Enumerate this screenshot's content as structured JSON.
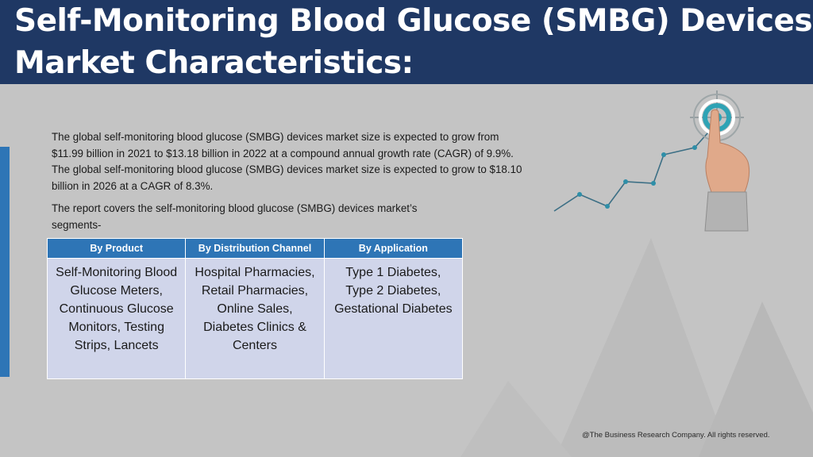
{
  "title_line1": "Self-Monitoring Blood Glucose (SMBG) Devices",
  "title_line2": "Market Characteristics:",
  "intro_text": "The global self-monitoring blood glucose (SMBG) devices market size is expected to grow from $11.99 billion in 2021 to $13.18 billion in 2022 at a compound annual growth rate (CAGR) of 9.9%. The global self-monitoring blood glucose (SMBG) devices market size is expected to grow to $18.10 billion in 2026 at a CAGR of 8.3%.",
  "report_text": "The report covers the self-monitoring blood glucose (SMBG) devices market’s segments-",
  "segments": {
    "headers": [
      "By Product",
      "By Distribution Channel",
      "By Application"
    ],
    "cells": [
      "Self-Monitoring Blood Glucose Meters, Continuous Glucose Monitors, Testing Strips, Lancets",
      "Hospital Pharmacies, Retail Pharmacies, Online Sales, Diabetes Clinics & Centers",
      "Type 1 Diabetes, Type 2 Diabetes, Gestational Diabetes"
    ]
  },
  "footer": "@The Business Research Company. All rights reserved.",
  "colors": {
    "header_bg": "#1f3864",
    "accent_blue": "#2e75b6",
    "table_cell_bg": "#d0d5ea",
    "slide_bg": "#c4c4c4",
    "target_teal": "#2fa3b5"
  },
  "icons": [
    "target-icon",
    "trend-line-icon",
    "pointing-hand-icon"
  ]
}
